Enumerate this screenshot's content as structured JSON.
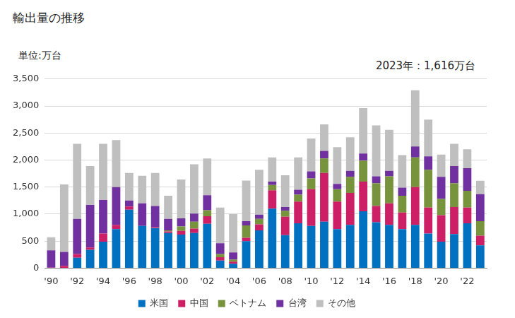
{
  "chart_data": {
    "type": "bar",
    "title": "輸出量の推移",
    "ylabel": "単位:万台",
    "annotations": [
      "2023年：1,616万台"
    ],
    "stacked": true,
    "grid": true,
    "legend": "bottom",
    "categories": [
      "'90",
      null,
      "'92",
      null,
      "'94",
      null,
      "'96",
      null,
      "'98",
      null,
      "'00",
      null,
      "'02",
      null,
      "'04",
      null,
      "'06",
      null,
      "'08",
      null,
      "'10",
      null,
      "'12",
      null,
      "'14",
      null,
      "'16",
      null,
      "'18",
      null,
      "'20",
      null,
      "'22",
      null
    ],
    "series": [
      {
        "name": "米国",
        "color": "#0070c0",
        "values": [
          0,
          0,
          190,
          340,
          490,
          720,
          1080,
          780,
          740,
          650,
          620,
          650,
          820,
          140,
          80,
          500,
          700,
          1100,
          610,
          830,
          780,
          860,
          720,
          800,
          1050,
          850,
          800,
          720,
          800,
          640,
          490,
          630,
          830,
          420
        ]
      },
      {
        "name": "中国",
        "color": "#cc1f66",
        "values": [
          10,
          40,
          70,
          40,
          150,
          80,
          60,
          0,
          20,
          30,
          70,
          80,
          140,
          60,
          40,
          60,
          110,
          340,
          340,
          400,
          680,
          900,
          510,
          590,
          550,
          300,
          400,
          310,
          700,
          480,
          490,
          500,
          290,
          180
        ]
      },
      {
        "name": "ベトナム",
        "color": "#77933c",
        "values": [
          0,
          0,
          0,
          0,
          0,
          0,
          0,
          0,
          0,
          20,
          80,
          130,
          110,
          60,
          40,
          230,
          100,
          100,
          110,
          130,
          200,
          270,
          230,
          300,
          390,
          420,
          500,
          310,
          550,
          700,
          300,
          440,
          310,
          270
        ]
      },
      {
        "name": "台湾",
        "color": "#7030a0",
        "values": [
          320,
          260,
          650,
          790,
          620,
          700,
          110,
          420,
          390,
          210,
          150,
          150,
          280,
          200,
          130,
          80,
          80,
          60,
          70,
          90,
          130,
          140,
          100,
          110,
          130,
          130,
          100,
          150,
          200,
          250,
          410,
          320,
          420,
          500
        ]
      },
      {
        "name": "その他",
        "color": "#bfbfbf",
        "values": [
          240,
          1250,
          1390,
          720,
          1040,
          870,
          510,
          510,
          610,
          430,
          720,
          910,
          680,
          660,
          710,
          750,
          830,
          450,
          590,
          600,
          610,
          490,
          680,
          620,
          840,
          940,
          760,
          600,
          1040,
          680,
          410,
          410,
          350,
          246
        ]
      }
    ],
    "ylim": [
      0,
      3500
    ],
    "yticks": [
      0,
      500,
      {
        "value": 1000,
        "label": "1,000"
      },
      {
        "value": 1500,
        "label": "1,500"
      },
      {
        "value": 2000,
        "label": "2,000"
      },
      {
        "value": 2500,
        "label": "2,500"
      },
      {
        "value": 3000,
        "label": "3,000"
      },
      {
        "value": 3500,
        "label": "3,500"
      }
    ]
  }
}
